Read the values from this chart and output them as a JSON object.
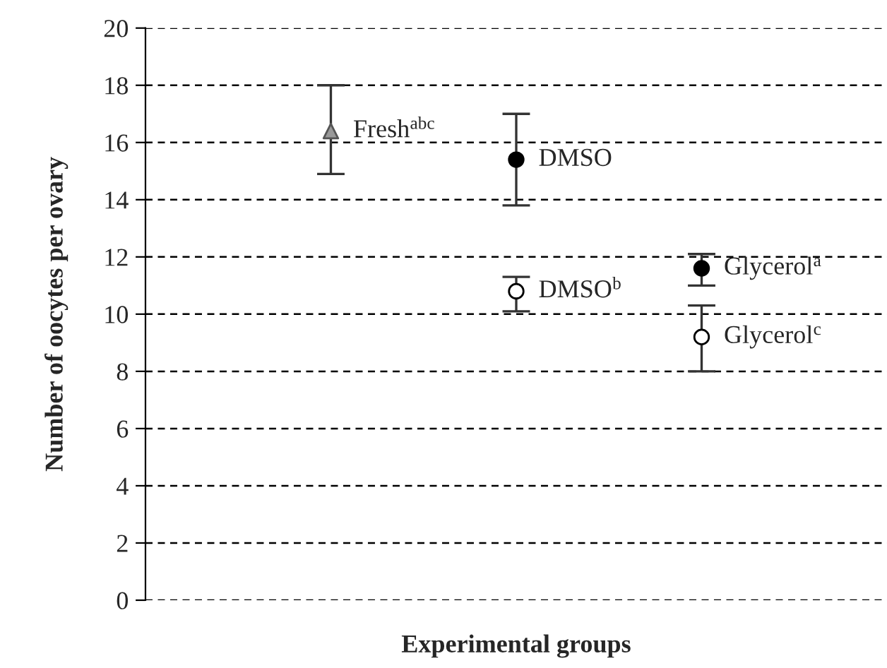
{
  "chart_data": {
    "type": "scatter",
    "xlabel": "Experimental groups",
    "ylabel": "Number of oocytes per ovary",
    "categories": [
      null,
      null,
      null
    ],
    "ylim": [
      0,
      20
    ],
    "yticks": [
      0,
      2,
      4,
      6,
      8,
      10,
      12,
      14,
      16,
      18,
      20
    ],
    "grid": "y",
    "legend": false,
    "series": [
      {
        "name": "Fresh$^{abc}$",
        "color": "#999999",
        "marker": "triangle",
        "values": [
          16.4,
          null,
          null
        ],
        "errors": [
          [
            14.9,
            18.0
          ],
          null,
          null
        ]
      },
      {
        "name": "DMSO",
        "color": "#000000",
        "marker": "circle",
        "values": [
          null,
          15.4,
          null
        ],
        "errors": [
          null,
          [
            13.8,
            17.0
          ],
          null
        ]
      },
      {
        "name": "DMSO$^{b}$",
        "color": "#ffffff",
        "marker": "circle",
        "values": [
          null,
          10.8,
          null
        ],
        "errors": [
          null,
          [
            10.1,
            11.3
          ],
          null
        ]
      },
      {
        "name": "Glycerol$^{a}$",
        "color": "#000000",
        "marker": "circle",
        "values": [
          null,
          null,
          11.6
        ],
        "errors": [
          null,
          null,
          [
            11.0,
            12.1
          ]
        ]
      },
      {
        "name": "Glycerol$^{c}$",
        "color": "#ffffff",
        "marker": "circle",
        "values": [
          null,
          null,
          9.2
        ],
        "errors": [
          null,
          null,
          [
            8.0,
            10.3
          ]
        ]
      }
    ]
  }
}
